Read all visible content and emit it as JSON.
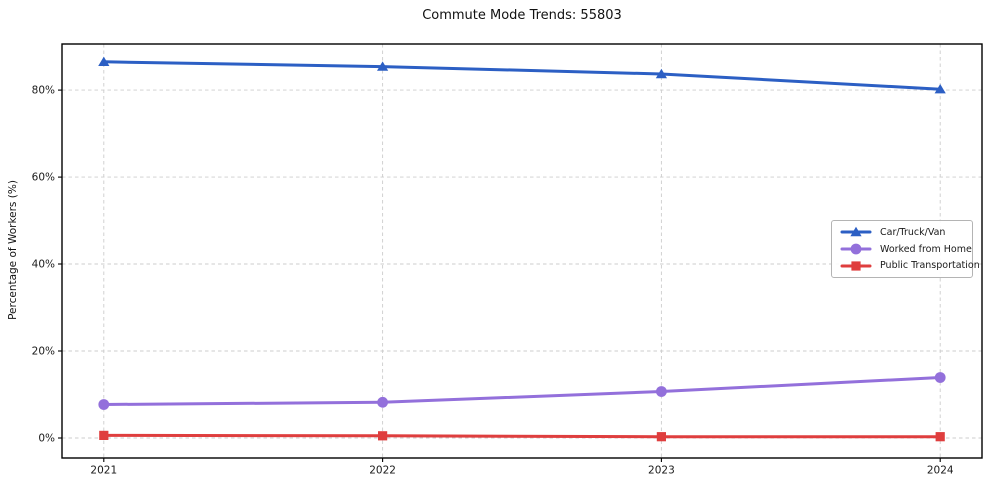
{
  "title": "Commute Mode Trends: 55803",
  "chart_data": {
    "type": "line",
    "title": "Commute Mode Trends: 55803",
    "xlabel": "",
    "ylabel": "Percentage of Workers (%)",
    "x": [
      2021,
      2022,
      2023,
      2024
    ],
    "xtick_labels": [
      "2021",
      "2022",
      "2023",
      "2024"
    ],
    "yticks": [
      0,
      20,
      40,
      60,
      80
    ],
    "ytick_labels": [
      "0%",
      "20%",
      "40%",
      "60%",
      "80%"
    ],
    "xlim": [
      2020.85,
      2024.15
    ],
    "ylim": [
      -4.6,
      90.6
    ],
    "grid": true,
    "grid_style": "dashed",
    "legend_position": "center-right",
    "series": [
      {
        "name": "Car/Truck/Van",
        "marker": "triangle",
        "color": "#2c5fc4",
        "values": [
          86.5,
          85.4,
          83.7,
          80.2
        ]
      },
      {
        "name": "Worked from Home",
        "marker": "circle",
        "color": "#9370db",
        "values": [
          7.7,
          8.2,
          10.7,
          13.9
        ]
      },
      {
        "name": "Public Transportation",
        "marker": "square",
        "color": "#df3e3e",
        "values": [
          0.6,
          0.5,
          0.3,
          0.3
        ]
      }
    ],
    "colors": {
      "grid": "#cccccc",
      "spine": "#000000",
      "tick_label": "#1a1a1a"
    }
  }
}
